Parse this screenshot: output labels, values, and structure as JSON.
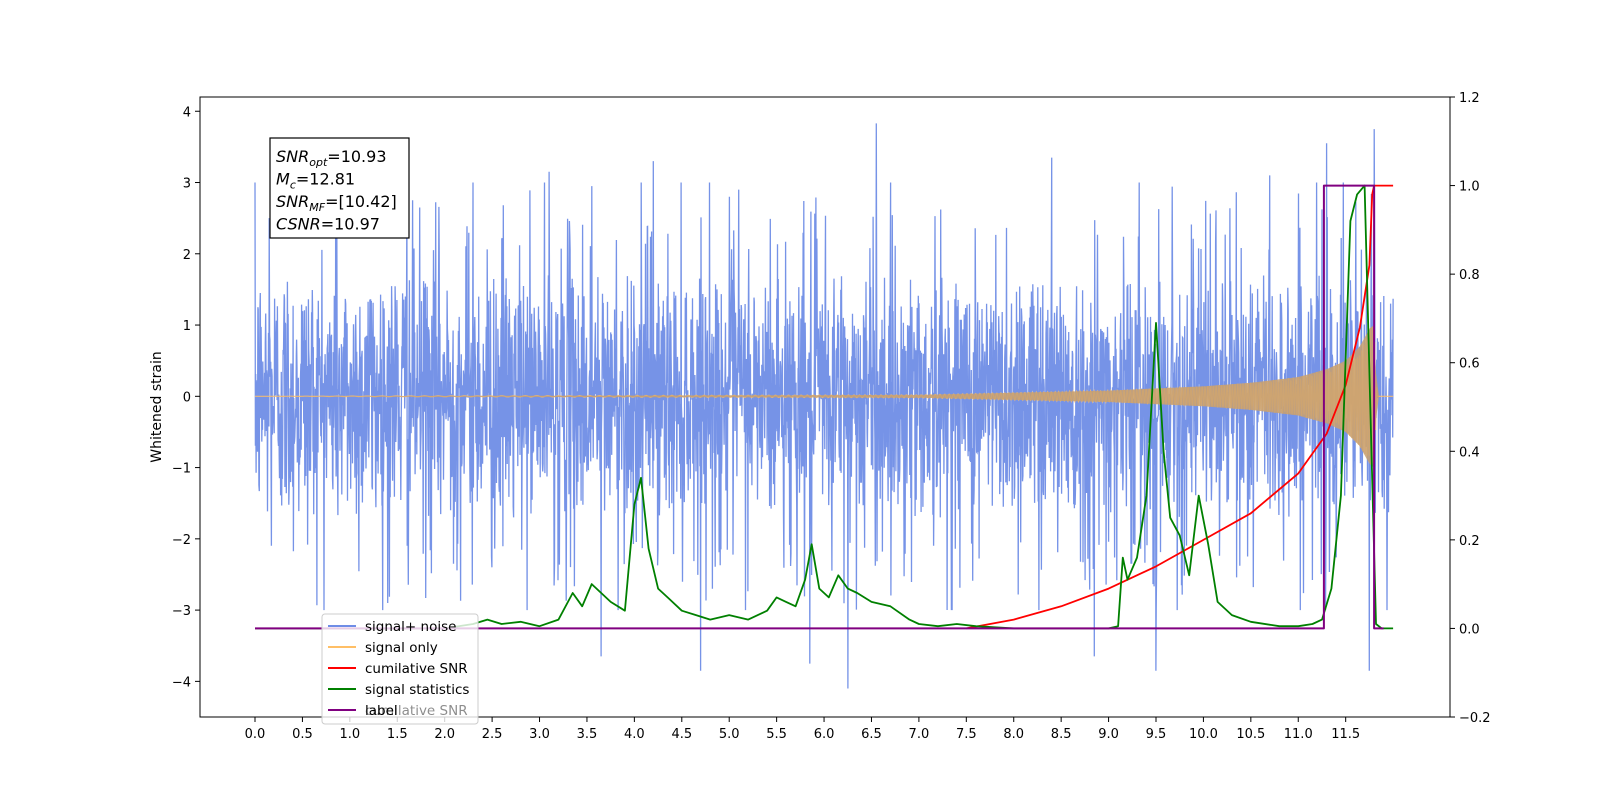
{
  "chart_data": {
    "type": "line",
    "title": "",
    "xlabel": "",
    "ylabel": "Whitened strain",
    "xlim": [
      -0.58,
      12.6
    ],
    "ylim": [
      -4.5,
      4.2
    ],
    "y2lim": [
      -0.2,
      1.2
    ],
    "grid": false,
    "x_ticks": [
      0.0,
      0.5,
      1.0,
      1.5,
      2.0,
      2.5,
      3.0,
      3.5,
      4.0,
      4.5,
      5.0,
      5.5,
      6.0,
      6.5,
      7.0,
      7.5,
      8.0,
      8.5,
      9.0,
      9.5,
      10.0,
      10.5,
      11.0,
      11.5
    ],
    "x_tick_labels": [
      "0.0",
      "0.5",
      "1.0",
      "1.5",
      "2.0",
      "2.5",
      "3.0",
      "3.5",
      "4.0",
      "4.5",
      "5.0",
      "5.5",
      "6.0",
      "6.5",
      "7.0",
      "7.5",
      "8.0",
      "8.5",
      "9.0",
      "9.5",
      "10.0",
      "10.5",
      "11.0",
      "11.5"
    ],
    "y_ticks": [
      -4,
      -3,
      -2,
      -1,
      0,
      1,
      2,
      3,
      4
    ],
    "y_tick_labels": [
      "−4",
      "−3",
      "−2",
      "−1",
      "0",
      "1",
      "2",
      "3",
      "4"
    ],
    "y2_ticks": [
      -0.2,
      0.0,
      0.2,
      0.4,
      0.6,
      0.8,
      1.0,
      1.2
    ],
    "y2_tick_labels": [
      "−0.2",
      "0.0",
      "0.2",
      "0.4",
      "0.6",
      "0.8",
      "1.0",
      "1.2"
    ],
    "annotation": {
      "lines": [
        {
          "base": "SNR",
          "sub": "opt",
          "value": "=10.93"
        },
        {
          "base": "M",
          "sub": "c",
          "value": "=12.81"
        },
        {
          "base": "SNR",
          "sub": "MF",
          "value": "=[10.42]"
        },
        {
          "base": "CSNR",
          "sub": "",
          "value": "=10.97"
        }
      ]
    },
    "legend": {
      "position": "lower-left",
      "items": [
        {
          "label": "signal+ noise",
          "color": "#6f8de6"
        },
        {
          "label": "signal only",
          "color": "#ffbf66"
        },
        {
          "label": "cumilative SNR",
          "color": "#ff0000"
        },
        {
          "label": "signal statistics",
          "color": "#008000"
        },
        {
          "label": "label",
          "color": "#800080"
        }
      ],
      "ghost_text": "cumilative SNR"
    },
    "series": [
      {
        "name": "signal+ noise",
        "axis": "left",
        "color": "#6f8de6",
        "x_range": [
          0.0,
          12.0
        ],
        "envelope": {
          "typical_abs": 2.2,
          "max": 3.83,
          "min": -4.1
        },
        "peaks": [
          {
            "x": 0.15,
            "y": 2.5
          },
          {
            "x": 0.85,
            "y": 3.05
          },
          {
            "x": 1.6,
            "y": 2.9
          },
          {
            "x": 2.3,
            "y": 3.0
          },
          {
            "x": 3.1,
            "y": 3.15
          },
          {
            "x": 3.55,
            "y": 2.95
          },
          {
            "x": 4.2,
            "y": 3.3
          },
          {
            "x": 5.1,
            "y": 2.9
          },
          {
            "x": 6.55,
            "y": 3.83
          },
          {
            "x": 8.4,
            "y": 3.35
          },
          {
            "x": 10.7,
            "y": 3.1
          },
          {
            "x": 11.3,
            "y": 3.55
          },
          {
            "x": 11.8,
            "y": 3.75
          },
          {
            "x": 1.4,
            "y": -2.9
          },
          {
            "x": 3.65,
            "y": -3.65
          },
          {
            "x": 4.7,
            "y": -3.85
          },
          {
            "x": 5.85,
            "y": -3.75
          },
          {
            "x": 6.25,
            "y": -4.1
          },
          {
            "x": 8.85,
            "y": -3.65
          },
          {
            "x": 9.5,
            "y": -3.85
          },
          {
            "x": 11.75,
            "y": -3.85
          }
        ]
      },
      {
        "name": "signal only",
        "axis": "left",
        "color": "#ffbf66",
        "x_range": [
          0.0,
          12.0
        ],
        "amplitude": [
          [
            0.0,
            0.0
          ],
          [
            7.0,
            0.02
          ],
          [
            8.0,
            0.05
          ],
          [
            9.0,
            0.08
          ],
          [
            10.0,
            0.14
          ],
          [
            10.5,
            0.19
          ],
          [
            11.0,
            0.27
          ],
          [
            11.3,
            0.38
          ],
          [
            11.5,
            0.5
          ],
          [
            11.65,
            0.7
          ],
          [
            11.75,
            0.95
          ],
          [
            11.8,
            1.0
          ],
          [
            11.83,
            0.0
          ],
          [
            12.0,
            0.0
          ]
        ]
      },
      {
        "name": "cumilative SNR",
        "axis": "right",
        "color": "#ff0000",
        "x": [
          7.5,
          8.0,
          8.5,
          9.0,
          9.5,
          10.0,
          10.5,
          11.0,
          11.3,
          11.5,
          11.65,
          11.75,
          11.78,
          11.8,
          12.0
        ],
        "values": [
          0.0,
          0.02,
          0.05,
          0.09,
          0.14,
          0.2,
          0.26,
          0.35,
          0.44,
          0.55,
          0.68,
          0.82,
          0.98,
          1.0,
          1.0
        ]
      },
      {
        "name": "signal statistics",
        "axis": "right",
        "color": "#008000",
        "x": [
          0.0,
          2.0,
          2.3,
          2.45,
          2.6,
          2.8,
          3.0,
          3.2,
          3.35,
          3.45,
          3.55,
          3.65,
          3.75,
          3.9,
          4.0,
          4.07,
          4.15,
          4.25,
          4.35,
          4.5,
          4.65,
          4.8,
          5.0,
          5.2,
          5.4,
          5.5,
          5.6,
          5.7,
          5.8,
          5.87,
          5.95,
          6.05,
          6.15,
          6.25,
          6.35,
          6.5,
          6.7,
          6.9,
          7.0,
          7.2,
          7.4,
          7.6,
          8.0,
          8.5,
          9.0,
          9.1,
          9.15,
          9.2,
          9.3,
          9.4,
          9.5,
          9.58,
          9.65,
          9.75,
          9.85,
          9.95,
          10.05,
          10.15,
          10.3,
          10.5,
          10.8,
          11.0,
          11.15,
          11.25,
          11.35,
          11.45,
          11.55,
          11.62,
          11.7,
          11.76,
          11.82,
          11.88,
          12.0
        ],
        "values": [
          0.0,
          0.0,
          0.01,
          0.02,
          0.01,
          0.015,
          0.005,
          0.02,
          0.08,
          0.05,
          0.1,
          0.08,
          0.06,
          0.04,
          0.28,
          0.34,
          0.18,
          0.09,
          0.07,
          0.04,
          0.03,
          0.02,
          0.03,
          0.02,
          0.04,
          0.07,
          0.06,
          0.05,
          0.11,
          0.19,
          0.09,
          0.07,
          0.12,
          0.09,
          0.08,
          0.06,
          0.05,
          0.02,
          0.01,
          0.005,
          0.01,
          0.005,
          0.0,
          0.0,
          0.0,
          0.005,
          0.16,
          0.11,
          0.16,
          0.3,
          0.69,
          0.4,
          0.25,
          0.21,
          0.12,
          0.3,
          0.19,
          0.06,
          0.03,
          0.015,
          0.005,
          0.005,
          0.01,
          0.02,
          0.09,
          0.3,
          0.92,
          0.98,
          1.0,
          0.5,
          0.01,
          0.0,
          0.0
        ]
      },
      {
        "name": "label",
        "axis": "right",
        "color": "#800080",
        "x": [
          0.0,
          11.27,
          11.27,
          11.75,
          11.8,
          11.8,
          11.9
        ],
        "values": [
          0.0,
          0.0,
          1.0,
          1.0,
          1.0,
          0.0,
          0.0
        ]
      }
    ]
  }
}
